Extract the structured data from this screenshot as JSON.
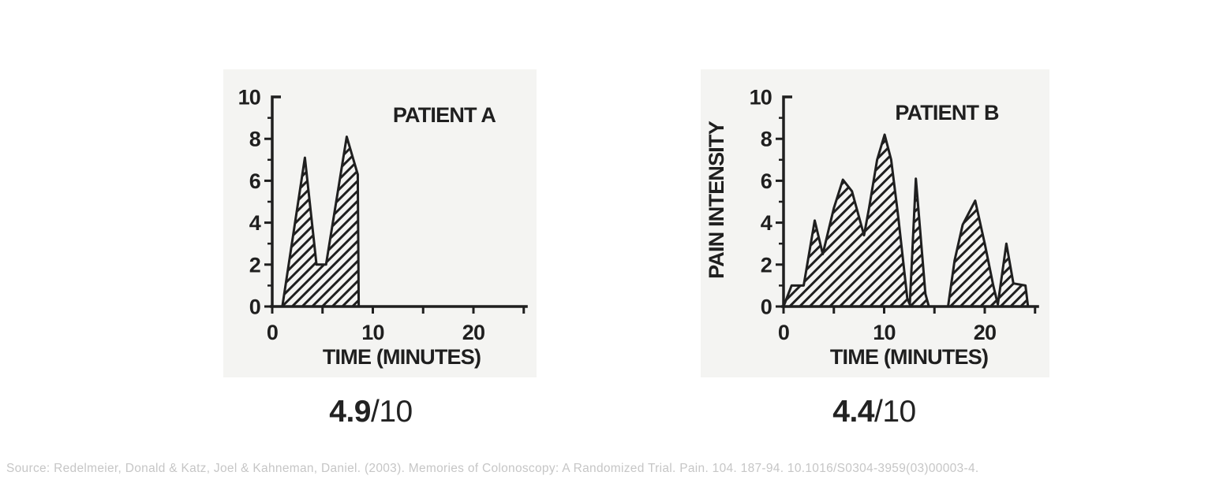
{
  "colors": {
    "page_bg": "#ffffff",
    "panel_bg": "#f4f4f2",
    "ink": "#1f1f1f",
    "score_text": "#222222",
    "source_text": "#c6c6c6"
  },
  "source_line": "Source: Redelmeier, Donald & Katz, Joel & Kahneman, Daniel. (2003). Memories of Colonoscopy: A Randomized Trial. Pain. 104. 187-94. 10.1016/S0304-3959(03)00003-4.",
  "chart_data": [
    {
      "type": "area",
      "title": "PATIENT A",
      "xlabel": "TIME (MINUTES)",
      "ylabel": "",
      "xlim": [
        0,
        25.4
      ],
      "ylim": [
        0,
        10
      ],
      "x_ticks": [
        0,
        5,
        10,
        15,
        20,
        25
      ],
      "x_tick_label_values": [
        0,
        10,
        20
      ],
      "x_tick_labels": [
        "0",
        "10",
        "20"
      ],
      "y_major_ticks": [
        0,
        2,
        4,
        6,
        8,
        10
      ],
      "y_minor_ticks": [
        1,
        3,
        5,
        7,
        9
      ],
      "y_tick_labels": [
        "0",
        "2",
        "4",
        "6",
        "8",
        "10"
      ],
      "grid": false,
      "legend": null,
      "fill_style": "diagonal-hatch",
      "points": [
        [
          1.0,
          0
        ],
        [
          3.25,
          7.1
        ],
        [
          4.4,
          2.0
        ],
        [
          5.35,
          2.0
        ],
        [
          7.4,
          8.1
        ],
        [
          8.5,
          6.3
        ],
        [
          8.6,
          0
        ]
      ],
      "remembered_score": {
        "bold": "4.9",
        "rest": "/10"
      }
    },
    {
      "type": "area",
      "title": "PATIENT B",
      "xlabel": "TIME (MINUTES)",
      "ylabel": "PAIN INTENSITY",
      "xlim": [
        0,
        25.4
      ],
      "ylim": [
        0,
        10
      ],
      "x_ticks": [
        0,
        5,
        10,
        15,
        20,
        25
      ],
      "x_tick_label_values": [
        0,
        10,
        20
      ],
      "x_tick_labels": [
        "0",
        "10",
        "20"
      ],
      "y_major_ticks": [
        0,
        2,
        4,
        6,
        8,
        10
      ],
      "y_minor_ticks": [
        1,
        3,
        5,
        7,
        9
      ],
      "y_tick_labels": [
        "0",
        "2",
        "4",
        "6",
        "8",
        "10"
      ],
      "grid": false,
      "legend": null,
      "fill_style": "diagonal-hatch",
      "points": [
        [
          0,
          0
        ],
        [
          0.8,
          1.0
        ],
        [
          2.0,
          1.0
        ],
        [
          3.1,
          4.1
        ],
        [
          3.9,
          2.5
        ],
        [
          5.0,
          4.7
        ],
        [
          5.9,
          6.05
        ],
        [
          6.8,
          5.5
        ],
        [
          8.0,
          3.4
        ],
        [
          8.5,
          4.7
        ],
        [
          9.3,
          7.0
        ],
        [
          10.05,
          8.2
        ],
        [
          10.7,
          7.0
        ],
        [
          11.4,
          4.3
        ],
        [
          12.3,
          0.4
        ],
        [
          12.55,
          0.1
        ],
        [
          13.15,
          6.1
        ],
        [
          14.1,
          0.6
        ],
        [
          14.45,
          0
        ],
        [
          16.35,
          0
        ],
        [
          17.0,
          2.2
        ],
        [
          17.8,
          3.9
        ],
        [
          19.05,
          5.05
        ],
        [
          20.0,
          3.0
        ],
        [
          20.85,
          1.0
        ],
        [
          21.3,
          0.1
        ],
        [
          22.15,
          3.0
        ],
        [
          22.85,
          1.1
        ],
        [
          24.05,
          1.0
        ],
        [
          24.3,
          0
        ]
      ],
      "remembered_score": {
        "bold": "4.4",
        "rest": "/10"
      }
    }
  ]
}
